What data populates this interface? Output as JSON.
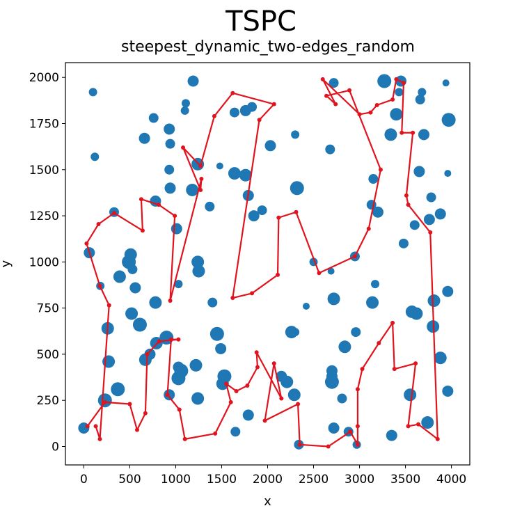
{
  "chart_data": {
    "type": "scatter",
    "title": "TSPC",
    "subtitle": "steepest_dynamic_two-edges_random",
    "xlabel": "x",
    "ylabel": "y",
    "xlim": [
      -200,
      4200
    ],
    "ylim": [
      -100,
      2080
    ],
    "x_ticks": [
      0,
      500,
      1000,
      1500,
      2000,
      2500,
      3000,
      3500,
      4000
    ],
    "y_ticks": [
      0,
      250,
      500,
      750,
      1000,
      1250,
      1500,
      1750,
      2000
    ],
    "grid": false,
    "point_color": "#1f77b4",
    "route_color": "#e0141e",
    "points": [
      {
        "x": 100,
        "y": 1920,
        "s": 6
      },
      {
        "x": 120,
        "y": 1570,
        "s": 6
      },
      {
        "x": 1190,
        "y": 1980,
        "s": 8
      },
      {
        "x": 1100,
        "y": 1820,
        "s": 6
      },
      {
        "x": 1110,
        "y": 1860,
        "s": 6
      },
      {
        "x": 760,
        "y": 1780,
        "s": 7
      },
      {
        "x": 930,
        "y": 1720,
        "s": 8
      },
      {
        "x": 660,
        "y": 1670,
        "s": 8
      },
      {
        "x": 940,
        "y": 1640,
        "s": 7
      },
      {
        "x": 930,
        "y": 1500,
        "s": 7
      },
      {
        "x": 940,
        "y": 1400,
        "s": 8
      },
      {
        "x": 1240,
        "y": 1530,
        "s": 9
      },
      {
        "x": 1180,
        "y": 1390,
        "s": 9
      },
      {
        "x": 1370,
        "y": 1300,
        "s": 7
      },
      {
        "x": 1480,
        "y": 1520,
        "s": 5
      },
      {
        "x": 1640,
        "y": 1480,
        "s": 9
      },
      {
        "x": 1760,
        "y": 1470,
        "s": 9
      },
      {
        "x": 1790,
        "y": 1360,
        "s": 8
      },
      {
        "x": 1850,
        "y": 1250,
        "s": 8
      },
      {
        "x": 1940,
        "y": 1280,
        "s": 7
      },
      {
        "x": 1640,
        "y": 1810,
        "s": 7
      },
      {
        "x": 1760,
        "y": 1820,
        "s": 8
      },
      {
        "x": 1830,
        "y": 1840,
        "s": 7
      },
      {
        "x": 2030,
        "y": 1630,
        "s": 8
      },
      {
        "x": 2300,
        "y": 1690,
        "s": 6
      },
      {
        "x": 2320,
        "y": 1400,
        "s": 10
      },
      {
        "x": 2680,
        "y": 1610,
        "s": 7
      },
      {
        "x": 2720,
        "y": 1970,
        "s": 7
      },
      {
        "x": 3270,
        "y": 1980,
        "s": 10
      },
      {
        "x": 3450,
        "y": 1980,
        "s": 8
      },
      {
        "x": 3430,
        "y": 1920,
        "s": 6
      },
      {
        "x": 3400,
        "y": 1800,
        "s": 9
      },
      {
        "x": 3340,
        "y": 1690,
        "s": 9
      },
      {
        "x": 3660,
        "y": 1880,
        "s": 7
      },
      {
        "x": 3680,
        "y": 1920,
        "s": 6
      },
      {
        "x": 3700,
        "y": 1690,
        "s": 8
      },
      {
        "x": 3970,
        "y": 1770,
        "s": 10
      },
      {
        "x": 3940,
        "y": 1970,
        "s": 5
      },
      {
        "x": 3960,
        "y": 1480,
        "s": 5
      },
      {
        "x": 3650,
        "y": 1490,
        "s": 8
      },
      {
        "x": 3780,
        "y": 1350,
        "s": 7
      },
      {
        "x": 3880,
        "y": 1260,
        "s": 8
      },
      {
        "x": 3760,
        "y": 1230,
        "s": 8
      },
      {
        "x": 3600,
        "y": 1200,
        "s": 7
      },
      {
        "x": 3480,
        "y": 1100,
        "s": 7
      },
      {
        "x": 3150,
        "y": 1450,
        "s": 7
      },
      {
        "x": 3130,
        "y": 1310,
        "s": 7
      },
      {
        "x": 3200,
        "y": 1270,
        "s": 8
      },
      {
        "x": 2950,
        "y": 1030,
        "s": 7
      },
      {
        "x": 3170,
        "y": 880,
        "s": 6
      },
      {
        "x": 3140,
        "y": 780,
        "s": 9
      },
      {
        "x": 3570,
        "y": 730,
        "s": 9
      },
      {
        "x": 3620,
        "y": 720,
        "s": 9
      },
      {
        "x": 3810,
        "y": 790,
        "s": 9
      },
      {
        "x": 3960,
        "y": 840,
        "s": 8
      },
      {
        "x": 3800,
        "y": 650,
        "s": 9
      },
      {
        "x": 3880,
        "y": 480,
        "s": 9
      },
      {
        "x": 3960,
        "y": 300,
        "s": 8
      },
      {
        "x": 3740,
        "y": 130,
        "s": 9
      },
      {
        "x": 3550,
        "y": 280,
        "s": 9
      },
      {
        "x": 3350,
        "y": 60,
        "s": 8
      },
      {
        "x": 2500,
        "y": 1000,
        "s": 6
      },
      {
        "x": 2690,
        "y": 950,
        "s": 5
      },
      {
        "x": 2720,
        "y": 800,
        "s": 9
      },
      {
        "x": 2420,
        "y": 760,
        "s": 5
      },
      {
        "x": 2260,
        "y": 620,
        "s": 9
      },
      {
        "x": 2300,
        "y": 620,
        "s": 6
      },
      {
        "x": 2210,
        "y": 350,
        "s": 9
      },
      {
        "x": 2150,
        "y": 380,
        "s": 8
      },
      {
        "x": 2290,
        "y": 280,
        "s": 9
      },
      {
        "x": 2340,
        "y": 10,
        "s": 7
      },
      {
        "x": 2700,
        "y": 410,
        "s": 8
      },
      {
        "x": 2700,
        "y": 350,
        "s": 10
      },
      {
        "x": 2700,
        "y": 380,
        "s": 8
      },
      {
        "x": 2840,
        "y": 540,
        "s": 9
      },
      {
        "x": 2810,
        "y": 260,
        "s": 7
      },
      {
        "x": 2960,
        "y": 620,
        "s": 7
      },
      {
        "x": 2720,
        "y": 100,
        "s": 8
      },
      {
        "x": 2880,
        "y": 80,
        "s": 7
      },
      {
        "x": 2970,
        "y": 10,
        "s": 6
      },
      {
        "x": 1400,
        "y": 780,
        "s": 7
      },
      {
        "x": 1450,
        "y": 610,
        "s": 10
      },
      {
        "x": 1490,
        "y": 530,
        "s": 8
      },
      {
        "x": 1530,
        "y": 380,
        "s": 10
      },
      {
        "x": 1510,
        "y": 340,
        "s": 9
      },
      {
        "x": 1790,
        "y": 170,
        "s": 8
      },
      {
        "x": 1650,
        "y": 80,
        "s": 7
      },
      {
        "x": 1250,
        "y": 950,
        "s": 9
      },
      {
        "x": 1240,
        "y": 1000,
        "s": 9
      },
      {
        "x": 1030,
        "y": 880,
        "s": 6
      },
      {
        "x": 1010,
        "y": 1180,
        "s": 8
      },
      {
        "x": 510,
        "y": 1040,
        "s": 9
      },
      {
        "x": 490,
        "y": 1000,
        "s": 10
      },
      {
        "x": 530,
        "y": 960,
        "s": 7
      },
      {
        "x": 390,
        "y": 920,
        "s": 9
      },
      {
        "x": 560,
        "y": 860,
        "s": 8
      },
      {
        "x": 780,
        "y": 1330,
        "s": 8
      },
      {
        "x": 780,
        "y": 780,
        "s": 9
      },
      {
        "x": 520,
        "y": 720,
        "s": 9
      },
      {
        "x": 610,
        "y": 660,
        "s": 10
      },
      {
        "x": 790,
        "y": 560,
        "s": 9
      },
      {
        "x": 900,
        "y": 590,
        "s": 10
      },
      {
        "x": 720,
        "y": 500,
        "s": 8
      },
      {
        "x": 670,
        "y": 470,
        "s": 9
      },
      {
        "x": 1030,
        "y": 430,
        "s": 8
      },
      {
        "x": 1030,
        "y": 370,
        "s": 10
      },
      {
        "x": 1060,
        "y": 410,
        "s": 10
      },
      {
        "x": 1220,
        "y": 440,
        "s": 9
      },
      {
        "x": 1240,
        "y": 260,
        "s": 9
      },
      {
        "x": 930,
        "y": 280,
        "s": 8
      },
      {
        "x": 260,
        "y": 640,
        "s": 9
      },
      {
        "x": 270,
        "y": 460,
        "s": 9
      },
      {
        "x": 370,
        "y": 310,
        "s": 10
      },
      {
        "x": 230,
        "y": 250,
        "s": 10
      },
      {
        "x": 0,
        "y": 100,
        "s": 8
      },
      {
        "x": 60,
        "y": 1050,
        "s": 8
      },
      {
        "x": 330,
        "y": 1270,
        "s": 7
      },
      {
        "x": 180,
        "y": 870,
        "s": 6
      }
    ],
    "route": [
      [
        130,
        110
      ],
      [
        175,
        40
      ],
      [
        275,
        765
      ],
      [
        175,
        870
      ],
      [
        30,
        1100
      ],
      [
        160,
        1205
      ],
      [
        330,
        1265
      ],
      [
        640,
        1170
      ],
      [
        625,
        1340
      ],
      [
        815,
        1310
      ],
      [
        990,
        1250
      ],
      [
        940,
        790
      ],
      [
        1280,
        1450
      ],
      [
        1270,
        1390
      ],
      [
        1080,
        1620
      ],
      [
        1270,
        1520
      ],
      [
        1420,
        1790
      ],
      [
        1620,
        1915
      ],
      [
        2070,
        1855
      ],
      [
        1910,
        1770
      ],
      [
        1620,
        805
      ],
      [
        1830,
        830
      ],
      [
        2110,
        930
      ],
      [
        2120,
        1240
      ],
      [
        2310,
        1270
      ],
      [
        2560,
        940
      ],
      [
        2950,
        1030
      ],
      [
        3100,
        1180
      ],
      [
        3230,
        1500
      ],
      [
        2890,
        1930
      ],
      [
        2640,
        1900
      ],
      [
        2740,
        1855
      ],
      [
        2600,
        1990
      ],
      [
        3000,
        1800
      ],
      [
        3120,
        1810
      ],
      [
        3190,
        1850
      ],
      [
        3360,
        1880
      ],
      [
        3400,
        1990
      ],
      [
        3480,
        1970
      ],
      [
        3460,
        1700
      ],
      [
        3580,
        1700
      ],
      [
        3510,
        1360
      ],
      [
        3530,
        1310
      ],
      [
        3770,
        1160
      ],
      [
        3850,
        40
      ],
      [
        3640,
        120
      ],
      [
        3530,
        110
      ],
      [
        3610,
        450
      ],
      [
        3380,
        420
      ],
      [
        3360,
        670
      ],
      [
        3210,
        560
      ],
      [
        3030,
        420
      ],
      [
        2980,
        310
      ],
      [
        2980,
        110
      ],
      [
        2980,
        10
      ],
      [
        2900,
        80
      ],
      [
        2660,
        0
      ],
      [
        2350,
        10
      ],
      [
        2330,
        230
      ],
      [
        1970,
        140
      ],
      [
        2070,
        450
      ],
      [
        2150,
        260
      ],
      [
        1880,
        510
      ],
      [
        1890,
        430
      ],
      [
        1780,
        330
      ],
      [
        1660,
        300
      ],
      [
        1550,
        340
      ],
      [
        1600,
        240
      ],
      [
        1430,
        70
      ],
      [
        1100,
        40
      ],
      [
        1040,
        200
      ],
      [
        910,
        280
      ],
      [
        950,
        580
      ],
      [
        1030,
        580
      ],
      [
        820,
        570
      ],
      [
        690,
        500
      ],
      [
        670,
        180
      ],
      [
        580,
        90
      ],
      [
        500,
        230
      ],
      [
        230,
        240
      ],
      [
        40,
        110
      ]
    ]
  }
}
